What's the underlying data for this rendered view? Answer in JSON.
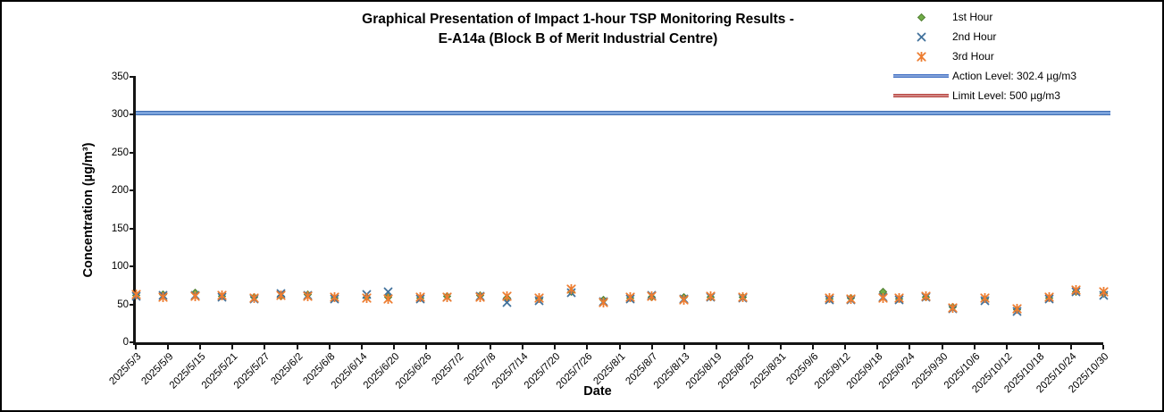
{
  "title": {
    "line1": "Graphical Presentation of Impact 1-hour TSP Monitoring Results -",
    "line2": "E-A14a (Block B of Merit Industrial Centre)"
  },
  "legend": {
    "items": [
      {
        "label": "1st Hour",
        "marker": "diamond",
        "color": "#70AD47",
        "edge": "#507E32"
      },
      {
        "label": "2nd Hour",
        "marker": "x",
        "color": "#41719C"
      },
      {
        "label": "3rd Hour",
        "marker": "x-star",
        "color": "#ED7D31"
      },
      {
        "label": "Action Level: 302.4 µg/m3",
        "marker": "line",
        "color": "#4472C4"
      },
      {
        "label": "Limit Level: 500 µg/m3",
        "marker": "line",
        "color": "#B84742"
      }
    ]
  },
  "chart_data": {
    "type": "scatter",
    "title": "Graphical Presentation of Impact 1-hour TSP Monitoring Results - E-A14a (Block B of Merit Industrial Centre)",
    "xlabel": "Date",
    "ylabel": "Concentration (µg/m³)",
    "ylim": [
      0,
      350
    ],
    "y_ticks": [
      0,
      50,
      100,
      150,
      200,
      250,
      300,
      350
    ],
    "x_range_days": [
      0,
      180
    ],
    "x_tick_interval_days": 6,
    "x_ticks": [
      "2025/5/3",
      "2025/5/9",
      "2025/5/15",
      "2025/5/21",
      "2025/5/27",
      "2025/6/2",
      "2025/6/8",
      "2025/6/14",
      "2025/6/20",
      "2025/6/26",
      "2025/7/2",
      "2025/7/8",
      "2025/7/14",
      "2025/7/20",
      "2025/7/26",
      "2025/8/1",
      "2025/8/7",
      "2025/8/13",
      "2025/8/19",
      "2025/8/25",
      "2025/8/31",
      "2025/9/6",
      "2025/9/12",
      "2025/9/18",
      "2025/9/24",
      "2025/9/30",
      "2025/10/6",
      "2025/10/12",
      "2025/10/18",
      "2025/10/24",
      "2025/10/30"
    ],
    "action_level": 302.4,
    "limit_level": 500,
    "legend_position": "top-right",
    "grid": false,
    "series_names": [
      "1st Hour",
      "2nd Hour",
      "3rd Hour"
    ],
    "points": [
      {
        "date": "2025/5/3",
        "day": 0,
        "values": [
          62,
          61,
          63
        ]
      },
      {
        "date": "2025/5/8",
        "day": 5,
        "values": [
          63,
          62,
          60
        ]
      },
      {
        "date": "2025/5/14",
        "day": 11,
        "values": [
          65,
          62,
          61
        ]
      },
      {
        "date": "2025/5/19",
        "day": 16,
        "values": [
          61,
          60,
          62
        ]
      },
      {
        "date": "2025/5/25",
        "day": 22,
        "values": [
          59,
          57,
          58
        ]
      },
      {
        "date": "2025/5/30",
        "day": 27,
        "values": [
          61,
          64,
          62
        ]
      },
      {
        "date": "2025/6/4",
        "day": 32,
        "values": [
          63,
          62,
          61
        ]
      },
      {
        "date": "2025/6/9",
        "day": 37,
        "values": [
          58,
          57,
          59
        ]
      },
      {
        "date": "2025/6/15",
        "day": 43,
        "values": [
          59,
          63,
          58
        ]
      },
      {
        "date": "2025/6/19",
        "day": 47,
        "values": [
          60,
          66,
          57
        ]
      },
      {
        "date": "2025/6/25",
        "day": 53,
        "values": [
          58,
          57,
          59
        ]
      },
      {
        "date": "2025/6/30",
        "day": 58,
        "values": [
          61,
          60,
          59
        ]
      },
      {
        "date": "2025/7/6",
        "day": 64,
        "values": [
          62,
          61,
          60
        ]
      },
      {
        "date": "2025/7/11",
        "day": 69,
        "values": [
          58,
          52,
          61
        ]
      },
      {
        "date": "2025/7/17",
        "day": 75,
        "values": [
          57,
          55,
          58
        ]
      },
      {
        "date": "2025/7/23",
        "day": 81,
        "values": [
          66,
          65,
          70
        ]
      },
      {
        "date": "2025/7/29",
        "day": 87,
        "values": [
          56,
          54,
          53
        ]
      },
      {
        "date": "2025/8/3",
        "day": 92,
        "values": [
          58,
          57,
          59
        ]
      },
      {
        "date": "2025/8/7",
        "day": 96,
        "values": [
          60,
          62,
          61
        ]
      },
      {
        "date": "2025/8/13",
        "day": 102,
        "values": [
          59,
          57,
          56
        ]
      },
      {
        "date": "2025/8/18",
        "day": 107,
        "values": [
          60,
          59,
          61
        ]
      },
      {
        "date": "2025/8/24",
        "day": 113,
        "values": [
          60,
          58,
          59
        ]
      },
      {
        "date": "2025/9/9",
        "day": 129,
        "values": [
          57,
          56,
          58
        ]
      },
      {
        "date": "2025/9/13",
        "day": 133,
        "values": [
          58,
          56,
          57
        ]
      },
      {
        "date": "2025/9/19",
        "day": 139,
        "values": [
          67,
          59,
          58
        ]
      },
      {
        "date": "2025/9/22",
        "day": 142,
        "values": [
          57,
          56,
          58
        ]
      },
      {
        "date": "2025/9/27",
        "day": 147,
        "values": [
          60,
          59,
          61
        ]
      },
      {
        "date": "2025/10/2",
        "day": 152,
        "values": [
          46,
          44,
          45
        ]
      },
      {
        "date": "2025/10/8",
        "day": 158,
        "values": [
          57,
          55,
          58
        ]
      },
      {
        "date": "2025/10/14",
        "day": 164,
        "values": [
          43,
          41,
          44
        ]
      },
      {
        "date": "2025/10/20",
        "day": 170,
        "values": [
          58,
          57,
          59
        ]
      },
      {
        "date": "2025/10/25",
        "day": 175,
        "values": [
          67,
          66,
          69
        ]
      },
      {
        "date": "2025/10/30",
        "day": 180,
        "values": [
          64,
          62,
          66
        ]
      }
    ]
  }
}
